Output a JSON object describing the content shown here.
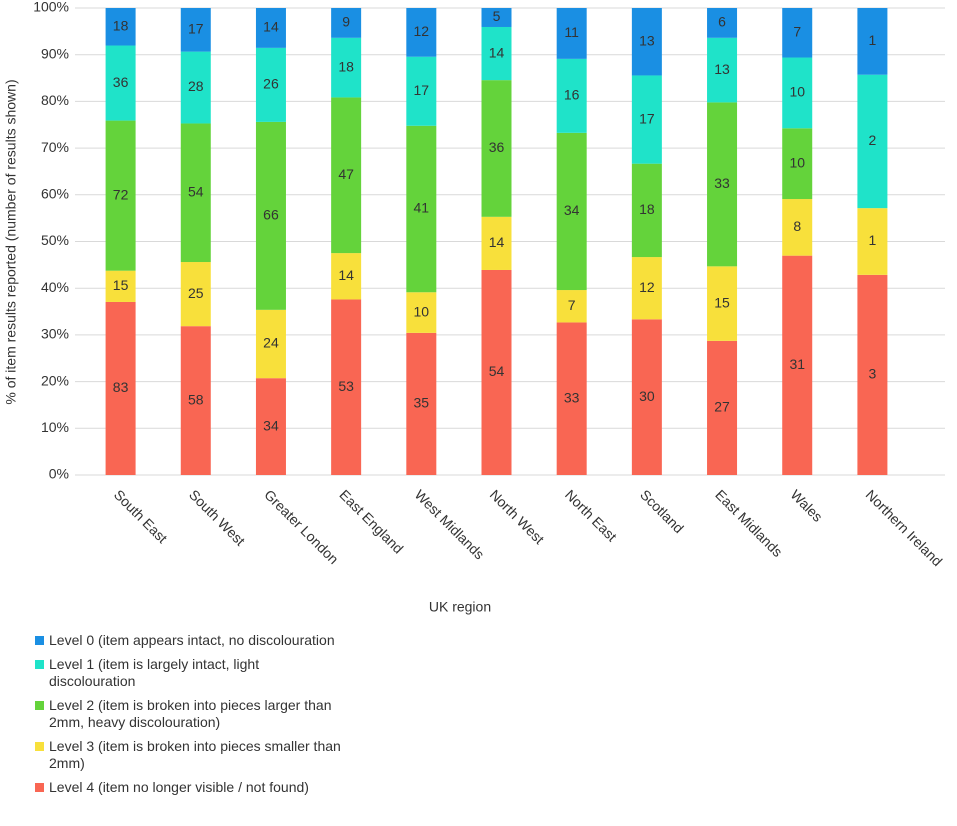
{
  "chart_data": {
    "type": "bar",
    "stacked": "percent",
    "x_label": "UK region",
    "y_label": "% of item results reported (number of results shown)",
    "categories": [
      "South East",
      "South West",
      "Greater London",
      "East England",
      "West Midlands",
      "North West",
      "North East",
      "Scotland",
      "East Midlands",
      "Wales",
      "Northern Ireland"
    ],
    "series": [
      {
        "name": "Level 0 (item appears intact, no discolouration",
        "color": "#1a8fe3",
        "values": [
          18,
          17,
          14,
          9,
          12,
          5,
          11,
          13,
          6,
          7,
          1
        ]
      },
      {
        "name": "Level 1 (item is largely intact, light discolouration",
        "color": "#1fe3c9",
        "values": [
          36,
          28,
          26,
          18,
          17,
          14,
          16,
          17,
          13,
          10,
          2
        ]
      },
      {
        "name": "Level 2 (item is broken into pieces larger than 2mm, heavy discolouration)",
        "color": "#64d33b",
        "values": [
          72,
          54,
          66,
          47,
          41,
          36,
          34,
          18,
          33,
          10,
          0
        ]
      },
      {
        "name": "Level 3 (item is broken into pieces smaller than 2mm)",
        "color": "#f8e03b",
        "values": [
          15,
          25,
          24,
          14,
          10,
          14,
          7,
          12,
          15,
          8,
          1
        ]
      },
      {
        "name": "Level 4 (item no longer visible / not found)",
        "color": "#f96653",
        "values": [
          83,
          58,
          34,
          53,
          35,
          54,
          33,
          30,
          27,
          31,
          3
        ]
      }
    ],
    "ylim": [
      0,
      100
    ],
    "yticks": [
      {
        "value": 0,
        "label": "0%"
      },
      {
        "value": 10,
        "label": "10%"
      },
      {
        "value": 20,
        "label": "20%"
      },
      {
        "value": 30,
        "label": "30%"
      },
      {
        "value": 40,
        "label": "40%"
      },
      {
        "value": 50,
        "label": "50%"
      },
      {
        "value": 60,
        "label": "60%"
      },
      {
        "value": 70,
        "label": "70%"
      },
      {
        "value": 80,
        "label": "80%"
      },
      {
        "value": 90,
        "label": "90%"
      },
      {
        "value": 100,
        "label": "100%"
      }
    ],
    "grid": true,
    "legend": "bottom-left"
  }
}
